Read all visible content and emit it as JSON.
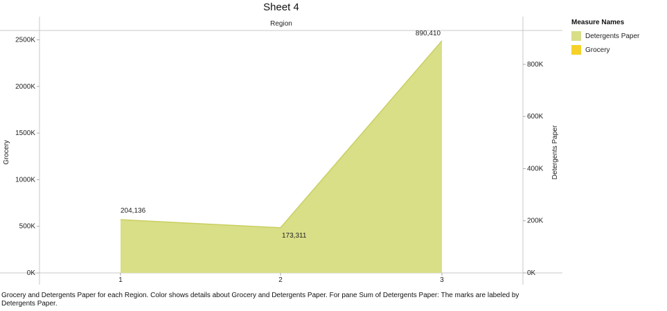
{
  "title": "Sheet 4",
  "caption": "Grocery and Detergents Paper for each Region.  Color shows details about Grocery and Detergents Paper.  For pane Sum of Detergents Paper:  The marks are labeled by Detergents Paper.",
  "legend": {
    "title": "Measure Names",
    "items": [
      {
        "label": "Detergents Paper",
        "color": "#d9df87"
      },
      {
        "label": "Grocery",
        "color": "#f5d12a"
      }
    ]
  },
  "chart_data": {
    "type": "area",
    "column_header": "Region",
    "categories": [
      "1",
      "2",
      "3"
    ],
    "series": [
      {
        "name": "Grocery",
        "axis": "left",
        "values": [
          570000,
          430000,
          2490000
        ],
        "color": "#f5d12a"
      },
      {
        "name": "Detergents Paper",
        "axis": "right",
        "values": [
          204136,
          173311,
          890410
        ],
        "color": "#d9df87"
      }
    ],
    "data_labels": [
      "204,136",
      "173,311",
      "890,410"
    ],
    "left_axis": {
      "label": "Grocery",
      "ticks": [
        "0K",
        "500K",
        "1000K",
        "1500K",
        "2000K",
        "2500K"
      ],
      "tick_values": [
        0,
        500000,
        1000000,
        1500000,
        2000000,
        2500000
      ],
      "ylim": [
        0,
        2600000
      ]
    },
    "right_axis": {
      "label": "Detergents Paper",
      "ticks": [
        "0K",
        "200K",
        "400K",
        "600K",
        "800K"
      ],
      "tick_values": [
        0,
        200000,
        400000,
        600000,
        800000
      ],
      "ylim": [
        0,
        930000
      ]
    },
    "grid": false,
    "legend_position": "right"
  }
}
